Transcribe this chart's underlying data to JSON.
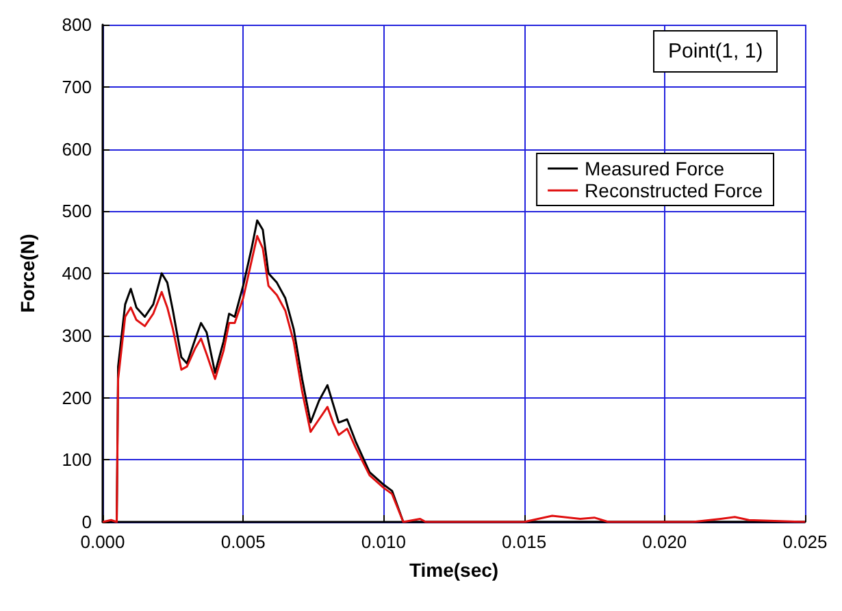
{
  "chart_data": {
    "type": "line",
    "xlabel": "Time(sec)",
    "ylabel": "Force(N)",
    "annotations": [
      "Point(1, 1)"
    ],
    "xlim": [
      0,
      0.025
    ],
    "xticks": [
      {
        "value": 0,
        "label": "0.000"
      },
      {
        "value": 0.005,
        "label": "0.005"
      },
      {
        "value": 0.01,
        "label": "0.010"
      },
      {
        "value": 0.015,
        "label": "0.015"
      },
      {
        "value": 0.02,
        "label": "0.020"
      },
      {
        "value": 0.025,
        "label": "0.025"
      }
    ],
    "ylim": [
      0,
      800
    ],
    "yticks": [
      0,
      100,
      200,
      300,
      400,
      500,
      600,
      700,
      800
    ],
    "grid": true,
    "legend": "top right",
    "marker": "none",
    "line_style": "solid",
    "series": [
      {
        "name": "Measured Force",
        "color": "#000000",
        "x": [
          0,
          0.0005,
          0.00055,
          0.0008,
          0.001,
          0.0012,
          0.0015,
          0.0018,
          0.0021,
          0.0023,
          0.0025,
          0.0028,
          0.003,
          0.0033,
          0.0035,
          0.0037,
          0.004,
          0.0043,
          0.0045,
          0.0047,
          0.005,
          0.0053,
          0.0055,
          0.0057,
          0.0059,
          0.0062,
          0.0065,
          0.0068,
          0.0071,
          0.0074,
          0.0077,
          0.008,
          0.0082,
          0.0084,
          0.0087,
          0.009,
          0.0095,
          0.01,
          0.0103,
          0.0107,
          0.0115,
          0.025
        ],
        "values": [
          0,
          0,
          250,
          350,
          375,
          345,
          330,
          350,
          400,
          385,
          340,
          265,
          255,
          295,
          320,
          305,
          240,
          290,
          335,
          330,
          380,
          440,
          485,
          470,
          400,
          385,
          360,
          310,
          230,
          160,
          195,
          220,
          190,
          160,
          165,
          130,
          80,
          60,
          50,
          0,
          0,
          0
        ]
      },
      {
        "name": "Reconstructed Force",
        "color": "#e01010",
        "x": [
          0,
          0.0003,
          0.0005,
          0.00055,
          0.0008,
          0.001,
          0.0012,
          0.0015,
          0.0018,
          0.0021,
          0.0023,
          0.0025,
          0.0028,
          0.003,
          0.0033,
          0.0035,
          0.0037,
          0.004,
          0.0043,
          0.0045,
          0.0047,
          0.005,
          0.0053,
          0.0055,
          0.0057,
          0.0059,
          0.0062,
          0.0065,
          0.0068,
          0.0071,
          0.0074,
          0.0077,
          0.008,
          0.0082,
          0.0084,
          0.0087,
          0.009,
          0.0095,
          0.01,
          0.0103,
          0.0107,
          0.0113,
          0.0115,
          0.015,
          0.0155,
          0.016,
          0.017,
          0.0175,
          0.018,
          0.021,
          0.022,
          0.0225,
          0.023,
          0.025
        ],
        "values": [
          0,
          3,
          0,
          230,
          330,
          345,
          325,
          315,
          335,
          370,
          345,
          310,
          245,
          250,
          280,
          295,
          270,
          230,
          275,
          320,
          320,
          360,
          420,
          460,
          440,
          380,
          365,
          340,
          290,
          210,
          145,
          165,
          185,
          160,
          140,
          150,
          120,
          75,
          55,
          45,
          0,
          5,
          0,
          0,
          5,
          10,
          5,
          7,
          0,
          0,
          5,
          8,
          3,
          0
        ]
      }
    ]
  }
}
